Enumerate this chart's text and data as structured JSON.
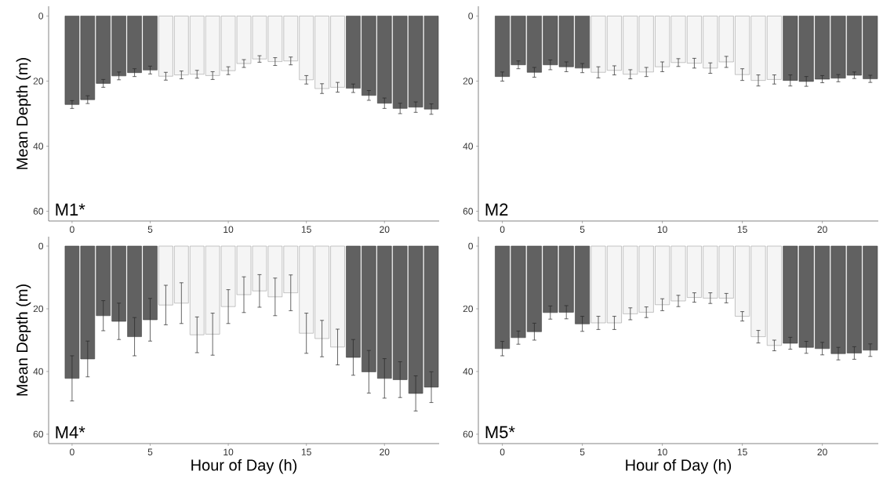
{
  "chart_data": [
    {
      "type": "bar",
      "annotations": [
        "M1*"
      ],
      "ylabel": "Mean Depth (m)",
      "x": [
        0,
        1,
        2,
        3,
        4,
        5,
        6,
        7,
        8,
        9,
        10,
        11,
        12,
        13,
        14,
        15,
        16,
        17,
        18,
        19,
        20,
        21,
        22,
        23
      ],
      "values": [
        27.2,
        25.7,
        20.7,
        18.4,
        17.4,
        16.6,
        18.5,
        18.1,
        17.9,
        18.3,
        16.8,
        14.6,
        13.2,
        14.0,
        13.8,
        19.6,
        22.3,
        21.9,
        22.2,
        24.4,
        26.8,
        28.4,
        28.0,
        28.6
      ],
      "errors": [
        1.2,
        1.2,
        1.2,
        1.2,
        1.2,
        1.2,
        1.2,
        1.2,
        1.2,
        1.2,
        1.2,
        1.2,
        1.0,
        1.2,
        1.2,
        1.3,
        1.5,
        1.5,
        1.3,
        1.5,
        1.6,
        1.6,
        1.6,
        1.6
      ],
      "colors": [
        "#616161",
        "#616161",
        "#616161",
        "#616161",
        "#616161",
        "#616161",
        "#f5f5f5",
        "#f5f5f5",
        "#f5f5f5",
        "#f5f5f5",
        "#f5f5f5",
        "#f5f5f5",
        "#f5f5f5",
        "#f5f5f5",
        "#f5f5f5",
        "#f5f5f5",
        "#f5f5f5",
        "#f5f5f5",
        "#616161",
        "#616161",
        "#616161",
        "#616161",
        "#616161",
        "#616161"
      ],
      "xlim": [
        -1.5,
        23.5
      ],
      "ylim": [
        63,
        -3
      ],
      "xticks": [
        0,
        5,
        10,
        15,
        20
      ],
      "yticks": [
        0,
        20,
        40,
        60
      ]
    },
    {
      "type": "bar",
      "annotations": [
        "M2"
      ],
      "x": [
        0,
        1,
        2,
        3,
        4,
        5,
        6,
        7,
        8,
        9,
        10,
        11,
        12,
        13,
        14,
        15,
        16,
        17,
        18,
        19,
        20,
        21,
        22,
        23
      ],
      "values": [
        18.6,
        15.0,
        17.3,
        15.0,
        15.6,
        16.0,
        17.3,
        16.7,
        17.9,
        17.2,
        15.6,
        14.3,
        14.5,
        16.0,
        14.1,
        18.0,
        19.8,
        19.5,
        19.8,
        20.1,
        19.4,
        19.1,
        18.2,
        19.3
      ],
      "errors": [
        1.4,
        1.2,
        1.5,
        1.5,
        1.5,
        1.4,
        1.7,
        1.4,
        1.4,
        1.4,
        1.5,
        1.2,
        1.5,
        1.6,
        1.7,
        1.8,
        1.7,
        1.4,
        1.7,
        1.5,
        1.1,
        1.1,
        1.0,
        1.1
      ],
      "colors": [
        "#616161",
        "#616161",
        "#616161",
        "#616161",
        "#616161",
        "#616161",
        "#f5f5f5",
        "#f5f5f5",
        "#f5f5f5",
        "#f5f5f5",
        "#f5f5f5",
        "#f5f5f5",
        "#f5f5f5",
        "#f5f5f5",
        "#f5f5f5",
        "#f5f5f5",
        "#f5f5f5",
        "#f5f5f5",
        "#616161",
        "#616161",
        "#616161",
        "#616161",
        "#616161",
        "#616161"
      ],
      "xlim": [
        -1.5,
        23.5
      ],
      "ylim": [
        63,
        -3
      ],
      "xticks": [
        0,
        5,
        10,
        15,
        20
      ],
      "yticks": [
        0,
        20,
        40,
        60
      ]
    },
    {
      "type": "bar",
      "annotations": [
        "M4*"
      ],
      "ylabel": "Mean Depth (m)",
      "xlabel": "Hour of Day (h)",
      "x": [
        0,
        1,
        2,
        3,
        4,
        5,
        6,
        7,
        8,
        9,
        10,
        11,
        12,
        13,
        14,
        15,
        16,
        17,
        18,
        19,
        20,
        21,
        22,
        23
      ],
      "values": [
        42.2,
        36.0,
        22.2,
        24.0,
        28.9,
        23.5,
        18.8,
        18.2,
        28.3,
        28.1,
        19.3,
        15.5,
        14.3,
        16.2,
        14.9,
        27.8,
        29.5,
        32.2,
        35.5,
        40.1,
        42.2,
        42.6,
        47.0,
        45.0
      ],
      "errors": [
        7.2,
        5.7,
        4.8,
        5.8,
        6.1,
        6.8,
        6.3,
        6.5,
        5.7,
        6.7,
        5.4,
        5.7,
        5.2,
        6.0,
        5.7,
        6.4,
        5.8,
        5.7,
        5.7,
        6.8,
        6.3,
        5.7,
        5.6,
        4.9
      ],
      "colors": [
        "#616161",
        "#616161",
        "#616161",
        "#616161",
        "#616161",
        "#616161",
        "#f5f5f5",
        "#f5f5f5",
        "#f5f5f5",
        "#f5f5f5",
        "#f5f5f5",
        "#f5f5f5",
        "#f5f5f5",
        "#f5f5f5",
        "#f5f5f5",
        "#f5f5f5",
        "#f5f5f5",
        "#f5f5f5",
        "#616161",
        "#616161",
        "#616161",
        "#616161",
        "#616161",
        "#616161"
      ],
      "xlim": [
        -1.5,
        23.5
      ],
      "ylim": [
        63,
        -3
      ],
      "xticks": [
        0,
        5,
        10,
        15,
        20
      ],
      "yticks": [
        0,
        20,
        40,
        60
      ]
    },
    {
      "type": "bar",
      "annotations": [
        "M5*"
      ],
      "xlabel": "Hour of Day (h)",
      "x": [
        0,
        1,
        2,
        3,
        4,
        5,
        6,
        7,
        8,
        9,
        10,
        11,
        12,
        13,
        14,
        15,
        16,
        17,
        18,
        19,
        20,
        21,
        22,
        23
      ],
      "values": [
        32.7,
        29.2,
        27.3,
        21.2,
        21.1,
        24.8,
        24.5,
        24.5,
        21.6,
        21.1,
        18.7,
        17.5,
        16.4,
        16.6,
        16.6,
        22.4,
        28.9,
        31.7,
        31.0,
        32.3,
        32.7,
        34.3,
        34.1,
        33.2
      ],
      "errors": [
        2.3,
        2.1,
        2.7,
        2.1,
        2.1,
        2.4,
        2.1,
        2.1,
        1.9,
        1.7,
        1.9,
        1.8,
        1.5,
        1.7,
        1.5,
        1.5,
        2.0,
        1.7,
        1.9,
        1.9,
        2.0,
        2.0,
        2.0,
        2.0
      ],
      "colors": [
        "#616161",
        "#616161",
        "#616161",
        "#616161",
        "#616161",
        "#616161",
        "#f5f5f5",
        "#f5f5f5",
        "#f5f5f5",
        "#f5f5f5",
        "#f5f5f5",
        "#f5f5f5",
        "#f5f5f5",
        "#f5f5f5",
        "#f5f5f5",
        "#f5f5f5",
        "#f5f5f5",
        "#f5f5f5",
        "#616161",
        "#616161",
        "#616161",
        "#616161",
        "#616161",
        "#616161"
      ],
      "xlim": [
        -1.5,
        23.5
      ],
      "ylim": [
        63,
        -3
      ],
      "xticks": [
        0,
        5,
        10,
        15,
        20
      ],
      "yticks": [
        0,
        20,
        40,
        60
      ]
    }
  ]
}
